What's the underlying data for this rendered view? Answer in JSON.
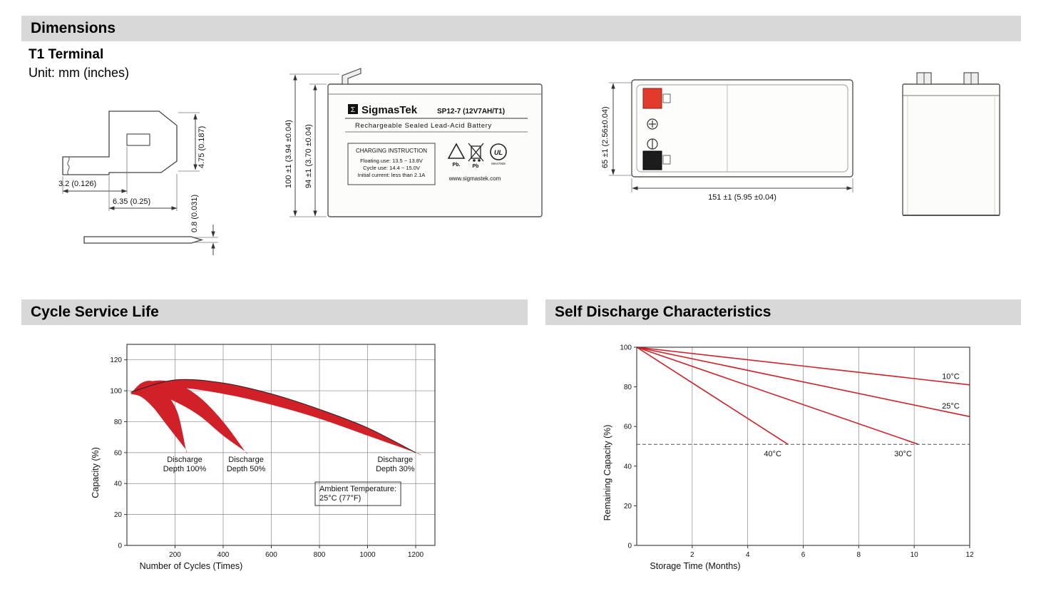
{
  "header": {
    "dimensions_title": "Dimensions"
  },
  "terminal_section": {
    "title": "T1 Terminal",
    "unit": "Unit: mm (inches)",
    "dim_height": "4.75 (0.187)",
    "dim_offset": "3.2 (0.126)",
    "dim_width": "6.35 (0.25)",
    "dim_thickness": "0.8 (0.031)"
  },
  "front_view": {
    "dim_outer": "100 ±1 (3.94 ±0.04)",
    "dim_inner": "94 ±1 (3.70 ±0.04)",
    "logo_glyph": "Σ",
    "brand": "SigmasTek",
    "model": "SP12-7 (12V7AH/T1)",
    "subtitle": "Rechargeable Sealed Lead-Acid Battery",
    "charging_title": "CHARGING INSTRUCTION",
    "charging_line1": "Floating use: 13.5 ~ 13.8V",
    "charging_line2": "Cycle use: 14.4 ~ 15.0V",
    "charging_line3": "Initial current: less than 2.1A",
    "pb_recycle": "Pb.",
    "pb_bin": "Pb",
    "ul_mark": "UL",
    "ul_code": "MH47929",
    "website": "www.sigmastek.com"
  },
  "top_view": {
    "dim_width": "65 ±1 (2.56±0.04)",
    "dim_length": "151 ±1 (5.95 ±0.04)"
  },
  "section_titles": {
    "cycle": "Cycle Service Life",
    "self": "Self Discharge Characteristics"
  },
  "chart_data": [
    {
      "type": "area",
      "title": "Cycle Service Life",
      "xlabel": "Number of Cycles (Times)",
      "ylabel": "Capacity (%)",
      "xlim": [
        0,
        1280
      ],
      "ylim": [
        0,
        130
      ],
      "xticks": [
        200,
        400,
        600,
        800,
        1000,
        1200
      ],
      "yticks": [
        0,
        20,
        40,
        60,
        80,
        100,
        120
      ],
      "grid": "both",
      "accent_red": "#cf2127",
      "bands": [
        {
          "name": "Discharge Depth 100%",
          "x": [
            15,
            60,
            110,
            160,
            210,
            245
          ],
          "upper": [
            98,
            105,
            106,
            99,
            86,
            62
          ],
          "lower": [
            98,
            96,
            89,
            79,
            69,
            62
          ]
        },
        {
          "name": "Discharge Depth 50%",
          "x": [
            15,
            100,
            200,
            300,
            400,
            490
          ],
          "upper": [
            98,
            106,
            105,
            96,
            80,
            61
          ],
          "lower": [
            98,
            99,
            93,
            84,
            71,
            61
          ]
        },
        {
          "name": "Discharge Depth 30%",
          "x": [
            15,
            200,
            400,
            600,
            800,
            1000,
            1200
          ],
          "upper": [
            99,
            107,
            105,
            98,
            88,
            76,
            60
          ],
          "lower": [
            99,
            102,
            98,
            91,
            82,
            71,
            60
          ],
          "outline_upper": true
        }
      ],
      "labels": [
        {
          "lines": [
            "Discharge",
            "Depth 100%"
          ],
          "x": 240,
          "y": 54,
          "anchor": "middle"
        },
        {
          "lines": [
            "Discharge",
            "Depth 50%"
          ],
          "x": 495,
          "y": 54,
          "anchor": "middle"
        },
        {
          "lines": [
            "Discharge",
            "Depth 30%"
          ],
          "x": 1115,
          "y": 54,
          "anchor": "middle"
        },
        {
          "lines": [
            "Ambient Temperature:",
            "25°C (77°F)"
          ],
          "x": 800,
          "y": 35,
          "anchor": "start",
          "box": true
        }
      ]
    },
    {
      "type": "line",
      "title": "Self Discharge Characteristics",
      "xlabel": "Storage Time (Months)",
      "ylabel": "Remaining Capacity (%)",
      "xlim": [
        0,
        12
      ],
      "ylim": [
        0,
        100
      ],
      "xticks": [
        2,
        4,
        6,
        8,
        10,
        12
      ],
      "yticks": [
        0,
        20,
        40,
        60,
        80,
        100
      ],
      "grid": "x",
      "accent_red": "#cf2127",
      "series": [
        {
          "name": "10°C",
          "x": [
            0,
            12
          ],
          "y": [
            100,
            81
          ]
        },
        {
          "name": "25°C",
          "x": [
            0,
            12
          ],
          "y": [
            100,
            65
          ]
        },
        {
          "name": "30°C",
          "x": [
            0,
            10.15
          ],
          "y": [
            100,
            51
          ]
        },
        {
          "name": "40°C",
          "x": [
            0,
            5.45
          ],
          "y": [
            100,
            51
          ]
        }
      ],
      "dashed_line": {
        "y": 51
      },
      "labels": [
        {
          "lines": [
            "10°C"
          ],
          "x": 11.0,
          "y": 84,
          "anchor": "start"
        },
        {
          "lines": [
            "25°C"
          ],
          "x": 11.0,
          "y": 69,
          "anchor": "start"
        },
        {
          "lines": [
            "40°C"
          ],
          "x": 4.9,
          "y": 45,
          "anchor": "middle"
        },
        {
          "lines": [
            "30°C"
          ],
          "x": 9.6,
          "y": 45,
          "anchor": "middle"
        }
      ]
    }
  ]
}
